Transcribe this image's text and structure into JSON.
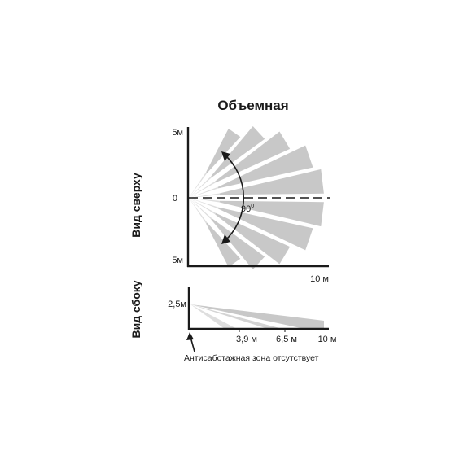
{
  "title": "Объемная",
  "top_view": {
    "label": "Вид сверху",
    "y_top": "5м",
    "y_mid": "0",
    "y_bottom": "5м",
    "x_end": "10 м",
    "angle": "90",
    "angle_unit": "0"
  },
  "side_view": {
    "label": "Вид сбоку",
    "height": "2,5м",
    "ticks": [
      "3,9 м",
      "6,5 м",
      "10 м"
    ],
    "note": "Антисаботажная зона отсутствует"
  },
  "colors": {
    "beam": "#c8c8c8",
    "beam_light": "#dedede",
    "ink": "#1a1a1a"
  }
}
